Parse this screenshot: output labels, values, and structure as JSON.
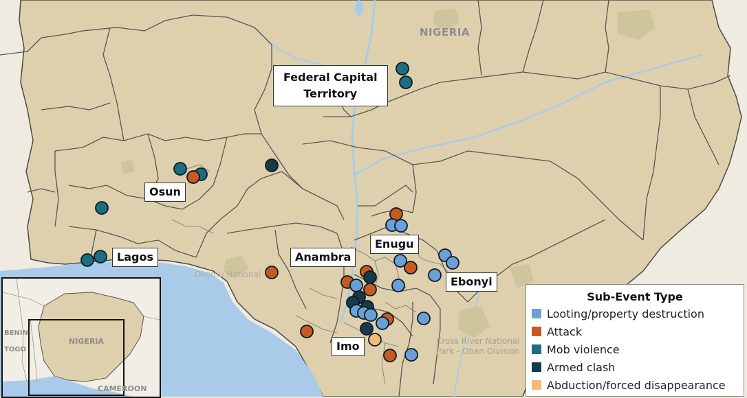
{
  "map": {
    "country_label": "NIGERIA",
    "park_labels": {
      "okomu": "Okomu National",
      "cross_river_line1": "Cross River National",
      "cross_river_line2": "Park - Oban Division"
    },
    "state_labels": {
      "fct_line1": "Federal Capital",
      "fct_line2": "Territory",
      "osun": "Osun",
      "lagos": "Lagos",
      "anambra": "Anambra",
      "enugu": "Enugu",
      "ebonyi": "Ebonyi",
      "imo": "Imo"
    },
    "colors": {
      "land": "#ded0ac",
      "water": "#a9cbe9",
      "outside": "#efebe0",
      "border": "#4a4a4a"
    }
  },
  "legend": {
    "title": "Sub-Event Type",
    "items": [
      {
        "label": "Looting/property destruction",
        "color": "#6a9fd8"
      },
      {
        "label": "Attack",
        "color": "#c55a22"
      },
      {
        "label": "Mob violence",
        "color": "#1b6f80"
      },
      {
        "label": "Armed clash",
        "color": "#173a4a"
      },
      {
        "label": "Abduction/forced disappearance",
        "color": "#f5ba7c"
      }
    ]
  },
  "inset": {
    "labels": {
      "nigeria": "NIGERIA",
      "benin": "BENIN",
      "togo": "TOGO",
      "cameroon": "CAMEROON"
    }
  }
}
